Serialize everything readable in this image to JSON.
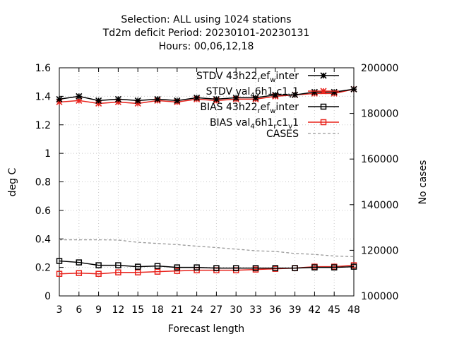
{
  "chart_data": {
    "type": "line",
    "title_lines": [
      "Selection: ALL using  1024 stations",
      "Td2m deficit   Period: 20230101-20230131",
      "Hours:  00,06,12,18"
    ],
    "xlabel": "Forecast length",
    "ylabel": "deg C",
    "y2label": "No cases",
    "x": [
      3,
      6,
      9,
      12,
      15,
      18,
      21,
      24,
      27,
      30,
      33,
      36,
      39,
      42,
      45,
      48
    ],
    "xticks": [
      3,
      6,
      9,
      12,
      15,
      18,
      21,
      24,
      27,
      30,
      33,
      36,
      39,
      42,
      45,
      48
    ],
    "xlim": [
      3,
      48
    ],
    "ylim": [
      0,
      1.6
    ],
    "yticks": [
      0,
      0.2,
      0.4,
      0.6,
      0.8,
      1,
      1.2,
      1.4,
      1.6
    ],
    "ytick_labels": [
      "0",
      "0.2",
      "0.4",
      "0.6",
      "0.8",
      "1",
      "1.2",
      "1.4",
      "1.6"
    ],
    "y2lim": [
      100000,
      200000
    ],
    "y2ticks": [
      100000,
      120000,
      140000,
      160000,
      180000,
      200000
    ],
    "y2tick_labels": [
      "100000",
      "120000",
      "140000",
      "160000",
      "180000",
      "200000"
    ],
    "legend_position": "top-right",
    "series": [
      {
        "name": "STDV 43h22_ref_winter",
        "legend_parts": [
          [
            "STDV 43h22",
            ""
          ],
          [
            "r",
            "sub"
          ],
          [
            "ef",
            ""
          ],
          [
            "w",
            "sub"
          ],
          [
            "inter",
            ""
          ]
        ],
        "axis": "y",
        "color": "#000000",
        "marker": "star",
        "values": [
          1.38,
          1.4,
          1.37,
          1.38,
          1.37,
          1.38,
          1.37,
          1.39,
          1.38,
          1.39,
          1.39,
          1.41,
          1.41,
          1.43,
          1.43,
          1.45
        ]
      },
      {
        "name": "STDV val_46h1_c1_v1",
        "legend_parts": [
          [
            "STDV val",
            ""
          ],
          [
            "4",
            "sub"
          ],
          [
            "6h1",
            ""
          ],
          [
            "r",
            "sub"
          ],
          [
            "c1",
            ""
          ],
          [
            "v",
            "sub"
          ],
          [
            "1",
            ""
          ]
        ],
        "axis": "y",
        "color": "#e8231c",
        "marker": "star",
        "values": [
          1.36,
          1.37,
          1.35,
          1.36,
          1.35,
          1.37,
          1.36,
          1.38,
          1.37,
          1.38,
          1.38,
          1.4,
          1.41,
          1.42,
          1.42,
          1.45
        ]
      },
      {
        "name": "BIAS 43h22_ref_winter",
        "legend_parts": [
          [
            "BIAS 43h22",
            ""
          ],
          [
            "r",
            "sub"
          ],
          [
            "ef",
            ""
          ],
          [
            "w",
            "sub"
          ],
          [
            "inter",
            ""
          ]
        ],
        "axis": "y",
        "color": "#000000",
        "marker": "square",
        "values": [
          0.245,
          0.235,
          0.215,
          0.215,
          0.205,
          0.21,
          0.2,
          0.2,
          0.195,
          0.195,
          0.195,
          0.195,
          0.195,
          0.2,
          0.2,
          0.205
        ]
      },
      {
        "name": "BIAS val_46h1_rc1_v1",
        "legend_parts": [
          [
            "BIAS val",
            ""
          ],
          [
            "4",
            "sub"
          ],
          [
            "6h1",
            ""
          ],
          [
            "r",
            "sub"
          ],
          [
            "c1",
            ""
          ],
          [
            "v",
            "sub"
          ],
          [
            "1",
            ""
          ]
        ],
        "axis": "y",
        "color": "#e8231c",
        "marker": "square",
        "values": [
          0.155,
          0.16,
          0.155,
          0.165,
          0.165,
          0.17,
          0.175,
          0.18,
          0.18,
          0.18,
          0.185,
          0.19,
          0.195,
          0.205,
          0.205,
          0.215
        ]
      },
      {
        "name": "CASES",
        "legend_parts": [
          [
            "CASES",
            ""
          ]
        ],
        "axis": "y2",
        "color": "#999999",
        "marker": "none",
        "dashed": true,
        "values": [
          124600,
          124600,
          124600,
          124500,
          123500,
          123000,
          122500,
          121800,
          121200,
          120500,
          119800,
          119500,
          118600,
          118200,
          117500,
          117200
        ]
      }
    ]
  }
}
